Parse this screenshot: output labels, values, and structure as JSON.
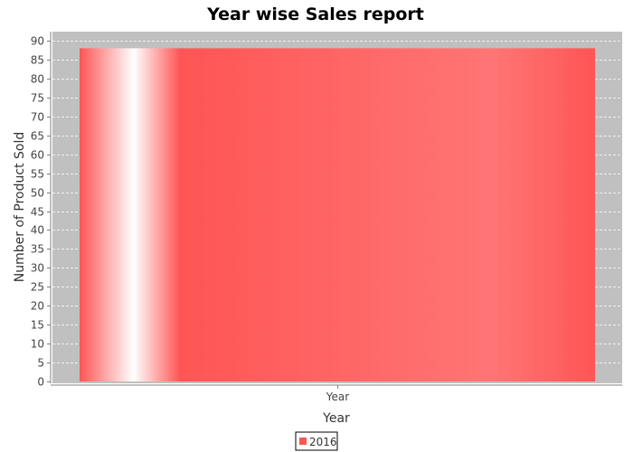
{
  "chart_data": {
    "type": "bar",
    "title": "Year wise Sales report",
    "xlabel": "Year",
    "ylabel": "Number of Product Sold",
    "categories": [
      "Year"
    ],
    "series": [
      {
        "name": "2016",
        "values": [
          88
        ]
      }
    ],
    "ylim": [
      0,
      90
    ],
    "yticks": [
      0,
      5,
      10,
      15,
      20,
      25,
      30,
      35,
      40,
      45,
      50,
      55,
      60,
      65,
      70,
      75,
      80,
      85,
      90
    ],
    "grid": true,
    "legend": "bottom-center",
    "colors": {
      "bar": "#ff5555",
      "plot_background": "#c0c0c0",
      "gridline": "#ffffff"
    }
  }
}
